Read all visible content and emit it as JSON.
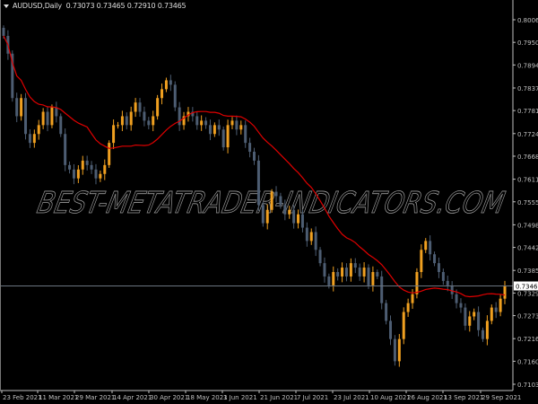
{
  "header": {
    "symbol": "AUDUSD,Daily",
    "ohlc": "0.73073 0.73465 0.72910 0.73465"
  },
  "watermark": "BEST-METATRADER-INDICATORS.COM",
  "colors": {
    "background": "#000000",
    "bull": "#f0a020",
    "bear": "#4d5d72",
    "ma": "#e00000",
    "axis": "#c0c0c0",
    "price_line": "#6a7480"
  },
  "chart_data": {
    "type": "candlestick",
    "symbol": "AUDUSD",
    "timeframe": "Daily",
    "ylim": [
      0.7082,
      0.8038
    ],
    "y_ticks": [
      "0.80060",
      "0.79500",
      "0.78940",
      "0.78370",
      "0.77810",
      "0.77240",
      "0.76680",
      "0.76110",
      "0.75550",
      "0.74980",
      "0.74420",
      "0.73850",
      "0.73290",
      "0.72730",
      "0.72160",
      "0.71600",
      "0.71030"
    ],
    "x_ticks": [
      "23 Feb 2021",
      "11 Mar 2021",
      "29 Mar 2021",
      "14 Apr 2021",
      "30 Apr 2021",
      "18 May 2021",
      "3 Jun 2021",
      "21 Jun 2021",
      "7 Jul 2021",
      "23 Jul 2021",
      "10 Aug 2021",
      "26 Aug 2021",
      "13 Sep 2021",
      "29 Sep 2021"
    ],
    "current_price": "0.73465",
    "closes": [
      0.7966,
      0.7922,
      0.7812,
      0.7767,
      0.7812,
      0.7723,
      0.7701,
      0.7723,
      0.7745,
      0.7778,
      0.7745,
      0.7789,
      0.7767,
      0.7723,
      0.7646,
      0.7635,
      0.7613,
      0.7635,
      0.7657,
      0.7646,
      0.7635,
      0.7613,
      0.7624,
      0.7646,
      0.7701,
      0.7745,
      0.7745,
      0.7767,
      0.7745,
      0.7778,
      0.7801,
      0.7778,
      0.7756,
      0.7745,
      0.7767,
      0.7812,
      0.7834,
      0.7856,
      0.7845,
      0.7789,
      0.7745,
      0.7767,
      0.7778,
      0.7767,
      0.7745,
      0.7756,
      0.7745,
      0.7723,
      0.7745,
      0.7734,
      0.769,
      0.7745,
      0.7756,
      0.7734,
      0.7745,
      0.7701,
      0.7679,
      0.7657,
      0.7547,
      0.7502,
      0.7535,
      0.758,
      0.7569,
      0.7547,
      0.7524,
      0.7535,
      0.7502,
      0.7524,
      0.7491,
      0.7458,
      0.748,
      0.7436,
      0.7403,
      0.737,
      0.7348,
      0.7381,
      0.737,
      0.7392,
      0.737,
      0.7403,
      0.7392,
      0.737,
      0.7392,
      0.7348,
      0.7381,
      0.737,
      0.7304,
      0.726,
      0.7215,
      0.716,
      0.7215,
      0.7282,
      0.7304,
      0.7326,
      0.7381,
      0.7436,
      0.7458,
      0.7425,
      0.7403,
      0.7381,
      0.7359,
      0.7348,
      0.7326,
      0.7304,
      0.7293,
      0.7248,
      0.7271,
      0.7282,
      0.7237,
      0.7215,
      0.726,
      0.7293,
      0.7282,
      0.7315,
      0.73465
    ]
  }
}
